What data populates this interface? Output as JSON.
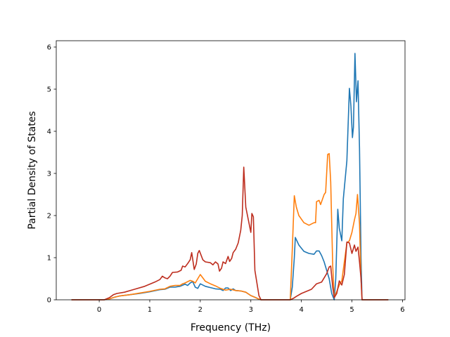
{
  "chart_data": {
    "type": "line",
    "title": "",
    "xlabel": "Frequency (THz)",
    "ylabel": "Partial Density of States",
    "xlim": [
      -0.85,
      6.05
    ],
    "ylim": [
      0,
      6.15
    ],
    "xticks": [
      0,
      1,
      2,
      3,
      4,
      5,
      6
    ],
    "yticks": [
      0,
      1,
      2,
      3,
      4,
      5,
      6
    ],
    "grid": false,
    "legend": "none",
    "series": [
      {
        "color": "#1f77b4",
        "points": [
          [
            -0.55,
            0
          ],
          [
            0.1,
            0
          ],
          [
            0.2,
            0.02
          ],
          [
            0.3,
            0.06
          ],
          [
            0.4,
            0.09
          ],
          [
            0.6,
            0.12
          ],
          [
            0.8,
            0.15
          ],
          [
            1.0,
            0.19
          ],
          [
            1.2,
            0.24
          ],
          [
            1.3,
            0.25
          ],
          [
            1.4,
            0.3
          ],
          [
            1.5,
            0.3
          ],
          [
            1.6,
            0.32
          ],
          [
            1.7,
            0.37
          ],
          [
            1.75,
            0.34
          ],
          [
            1.8,
            0.4
          ],
          [
            1.85,
            0.43
          ],
          [
            1.9,
            0.3
          ],
          [
            1.95,
            0.27
          ],
          [
            2.0,
            0.38
          ],
          [
            2.1,
            0.32
          ],
          [
            2.2,
            0.29
          ],
          [
            2.3,
            0.26
          ],
          [
            2.4,
            0.25
          ],
          [
            2.45,
            0.22
          ],
          [
            2.5,
            0.28
          ],
          [
            2.55,
            0.28
          ],
          [
            2.6,
            0.22
          ],
          [
            2.65,
            0.26
          ],
          [
            2.7,
            0.22
          ],
          [
            2.8,
            0.21
          ],
          [
            2.9,
            0.18
          ],
          [
            3.0,
            0.1
          ],
          [
            3.1,
            0.05
          ],
          [
            3.15,
            0.02
          ],
          [
            3.2,
            0
          ],
          [
            3.78,
            0
          ],
          [
            3.82,
            0.3
          ],
          [
            3.86,
            1.0
          ],
          [
            3.88,
            1.48
          ],
          [
            3.95,
            1.3
          ],
          [
            4.05,
            1.15
          ],
          [
            4.15,
            1.1
          ],
          [
            4.25,
            1.08
          ],
          [
            4.3,
            1.16
          ],
          [
            4.35,
            1.16
          ],
          [
            4.4,
            1.05
          ],
          [
            4.45,
            0.9
          ],
          [
            4.5,
            0.7
          ],
          [
            4.55,
            0.5
          ],
          [
            4.6,
            0.15
          ],
          [
            4.65,
            0
          ],
          [
            4.68,
            0.5
          ],
          [
            4.72,
            2.15
          ],
          [
            4.75,
            1.7
          ],
          [
            4.8,
            1.4
          ],
          [
            4.83,
            2.4
          ],
          [
            4.9,
            3.3
          ],
          [
            4.95,
            5.02
          ],
          [
            4.98,
            4.6
          ],
          [
            5.01,
            3.85
          ],
          [
            5.03,
            4.1
          ],
          [
            5.06,
            5.85
          ],
          [
            5.09,
            4.7
          ],
          [
            5.12,
            5.2
          ],
          [
            5.15,
            3.6
          ],
          [
            5.18,
            1.0
          ],
          [
            5.2,
            0
          ],
          [
            5.72,
            0
          ]
        ]
      },
      {
        "color": "#ff7f0e",
        "points": [
          [
            -0.55,
            0
          ],
          [
            0.1,
            0
          ],
          [
            0.2,
            0.02
          ],
          [
            0.3,
            0.06
          ],
          [
            0.4,
            0.09
          ],
          [
            0.6,
            0.12
          ],
          [
            0.8,
            0.16
          ],
          [
            1.0,
            0.2
          ],
          [
            1.2,
            0.25
          ],
          [
            1.3,
            0.26
          ],
          [
            1.4,
            0.32
          ],
          [
            1.5,
            0.34
          ],
          [
            1.6,
            0.34
          ],
          [
            1.65,
            0.38
          ],
          [
            1.7,
            0.4
          ],
          [
            1.8,
            0.46
          ],
          [
            1.85,
            0.44
          ],
          [
            1.9,
            0.4
          ],
          [
            1.95,
            0.5
          ],
          [
            2.0,
            0.6
          ],
          [
            2.1,
            0.44
          ],
          [
            2.2,
            0.38
          ],
          [
            2.3,
            0.33
          ],
          [
            2.4,
            0.27
          ],
          [
            2.5,
            0.23
          ],
          [
            2.6,
            0.25
          ],
          [
            2.7,
            0.22
          ],
          [
            2.8,
            0.21
          ],
          [
            2.9,
            0.18
          ],
          [
            3.0,
            0.1
          ],
          [
            3.1,
            0.05
          ],
          [
            3.15,
            0.02
          ],
          [
            3.2,
            0
          ],
          [
            3.78,
            0
          ],
          [
            3.82,
            1.2
          ],
          [
            3.86,
            2.47
          ],
          [
            3.9,
            2.2
          ],
          [
            3.95,
            2.0
          ],
          [
            4.05,
            1.83
          ],
          [
            4.15,
            1.77
          ],
          [
            4.25,
            1.83
          ],
          [
            4.28,
            1.83
          ],
          [
            4.3,
            2.33
          ],
          [
            4.35,
            2.36
          ],
          [
            4.38,
            2.26
          ],
          [
            4.45,
            2.5
          ],
          [
            4.48,
            2.55
          ],
          [
            4.52,
            3.45
          ],
          [
            4.55,
            3.47
          ],
          [
            4.58,
            2.8
          ],
          [
            4.62,
            0.8
          ],
          [
            4.65,
            0.05
          ],
          [
            4.7,
            0.2
          ],
          [
            4.75,
            0.35
          ],
          [
            4.8,
            0.45
          ],
          [
            4.9,
            1.35
          ],
          [
            4.95,
            1.4
          ],
          [
            5.0,
            1.6
          ],
          [
            5.05,
            1.9
          ],
          [
            5.08,
            2.05
          ],
          [
            5.11,
            2.5
          ],
          [
            5.15,
            1.8
          ],
          [
            5.18,
            0.5
          ],
          [
            5.2,
            0
          ],
          [
            5.72,
            0
          ]
        ]
      },
      {
        "color": "#bd2d1e",
        "points": [
          [
            -0.55,
            0
          ],
          [
            0.1,
            0
          ],
          [
            0.2,
            0.05
          ],
          [
            0.28,
            0.12
          ],
          [
            0.35,
            0.15
          ],
          [
            0.5,
            0.18
          ],
          [
            0.7,
            0.25
          ],
          [
            0.9,
            0.32
          ],
          [
            1.1,
            0.42
          ],
          [
            1.2,
            0.48
          ],
          [
            1.25,
            0.56
          ],
          [
            1.3,
            0.52
          ],
          [
            1.35,
            0.5
          ],
          [
            1.4,
            0.56
          ],
          [
            1.45,
            0.65
          ],
          [
            1.55,
            0.66
          ],
          [
            1.62,
            0.7
          ],
          [
            1.65,
            0.8
          ],
          [
            1.7,
            0.78
          ],
          [
            1.75,
            0.86
          ],
          [
            1.8,
            0.95
          ],
          [
            1.83,
            1.12
          ],
          [
            1.88,
            0.72
          ],
          [
            1.92,
            0.85
          ],
          [
            1.95,
            1.1
          ],
          [
            1.98,
            1.17
          ],
          [
            2.05,
            0.95
          ],
          [
            2.1,
            0.9
          ],
          [
            2.2,
            0.88
          ],
          [
            2.25,
            0.83
          ],
          [
            2.3,
            0.9
          ],
          [
            2.35,
            0.85
          ],
          [
            2.38,
            0.68
          ],
          [
            2.42,
            0.75
          ],
          [
            2.45,
            0.9
          ],
          [
            2.5,
            0.86
          ],
          [
            2.55,
            1.03
          ],
          [
            2.58,
            0.91
          ],
          [
            2.62,
            0.98
          ],
          [
            2.65,
            1.12
          ],
          [
            2.7,
            1.2
          ],
          [
            2.75,
            1.35
          ],
          [
            2.8,
            1.65
          ],
          [
            2.83,
            2.0
          ],
          [
            2.86,
            3.15
          ],
          [
            2.9,
            2.2
          ],
          [
            2.95,
            1.9
          ],
          [
            3.0,
            1.6
          ],
          [
            3.02,
            2.05
          ],
          [
            3.05,
            1.97
          ],
          [
            3.08,
            0.7
          ],
          [
            3.12,
            0.4
          ],
          [
            3.16,
            0.1
          ],
          [
            3.2,
            0
          ],
          [
            3.78,
            0
          ],
          [
            3.85,
            0.04
          ],
          [
            3.9,
            0.08
          ],
          [
            4.0,
            0.15
          ],
          [
            4.1,
            0.2
          ],
          [
            4.2,
            0.25
          ],
          [
            4.3,
            0.38
          ],
          [
            4.4,
            0.42
          ],
          [
            4.5,
            0.62
          ],
          [
            4.55,
            0.78
          ],
          [
            4.58,
            0.8
          ],
          [
            4.62,
            0.3
          ],
          [
            4.65,
            0.05
          ],
          [
            4.7,
            0.15
          ],
          [
            4.75,
            0.45
          ],
          [
            4.8,
            0.35
          ],
          [
            4.85,
            0.6
          ],
          [
            4.9,
            1.37
          ],
          [
            4.95,
            1.35
          ],
          [
            5.0,
            1.1
          ],
          [
            5.05,
            1.3
          ],
          [
            5.08,
            1.15
          ],
          [
            5.12,
            1.25
          ],
          [
            5.15,
            0.9
          ],
          [
            5.18,
            0.5
          ],
          [
            5.2,
            0
          ],
          [
            5.72,
            0
          ]
        ]
      }
    ]
  }
}
